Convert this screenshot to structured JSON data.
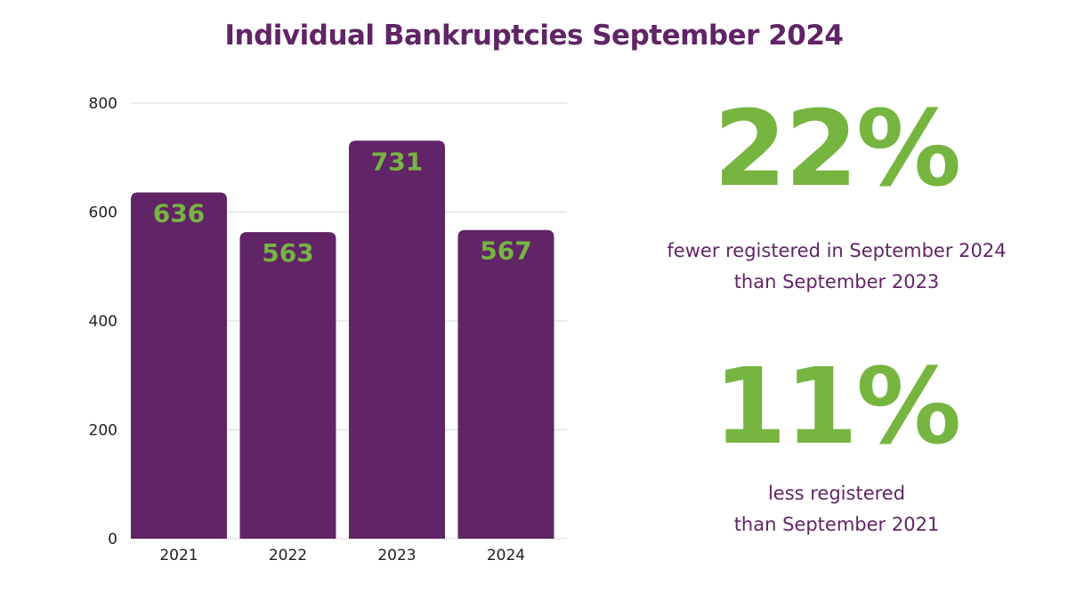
{
  "colors": {
    "bar": "#612466",
    "accent_green": "#76b540",
    "title": "#612466",
    "grid": "#d9d9d9",
    "axis_text": "#222222",
    "stat_text": "#612466"
  },
  "chart_data": {
    "type": "bar",
    "title": "Individual Bankruptcies September 2024",
    "categories": [
      "2021",
      "2022",
      "2023",
      "2024"
    ],
    "values": [
      636,
      563,
      731,
      567
    ],
    "data_labels": [
      "636",
      "563",
      "731",
      "567"
    ],
    "y_ticks": [
      "0",
      "200",
      "400",
      "600",
      "800"
    ],
    "ylim": [
      0,
      800
    ],
    "xlabel": "",
    "ylabel": "",
    "grid": true,
    "legend": "none"
  },
  "stats": [
    {
      "value": "22%",
      "lines": [
        "fewer registered in September 2024",
        "than September 2023"
      ]
    },
    {
      "value": "11%",
      "lines": [
        "less registered",
        "than September 2021"
      ]
    }
  ]
}
